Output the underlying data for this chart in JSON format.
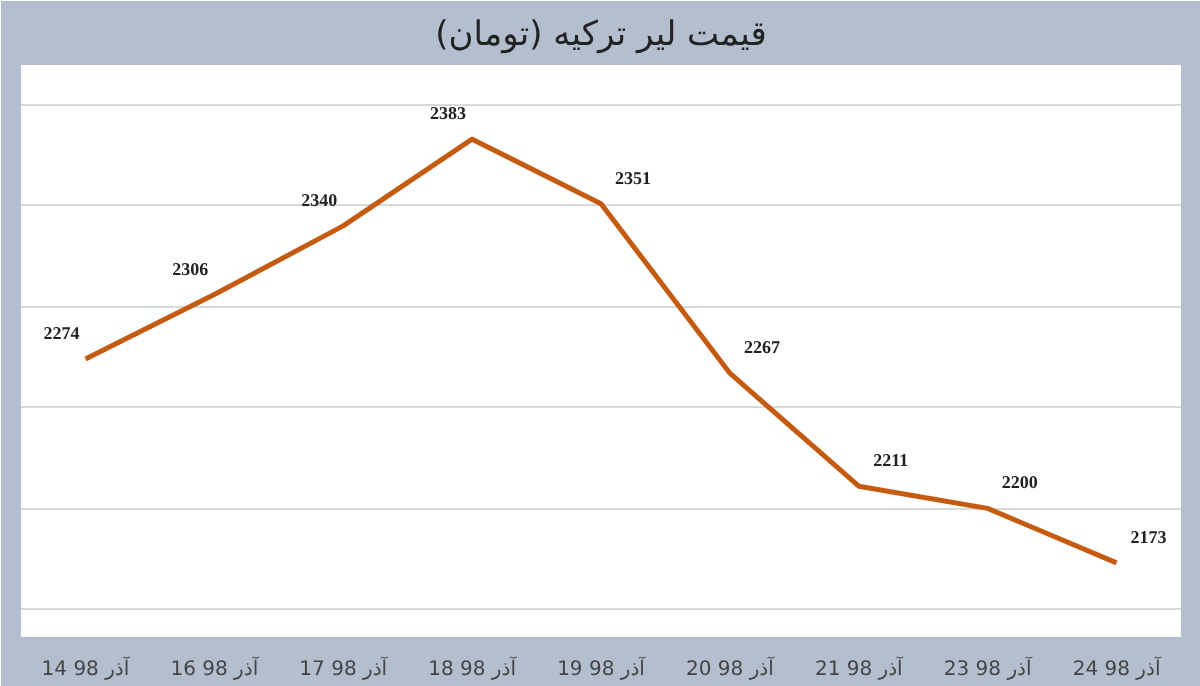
{
  "chart_data": {
    "type": "line",
    "title": "قیمت لیر ترکیه (تومان)",
    "categories": [
      "14 آذر 98",
      "16 آذر 98",
      "17 آذر 98",
      "18 آذر 98",
      "19 آذر 98",
      "20 آذر 98",
      "21 آذر 98",
      "23 آذر 98",
      "24 آذر 98"
    ],
    "series": [
      {
        "color": "#c55a11",
        "values": [
          2274,
          2306,
          2340,
          2383,
          2351,
          2267,
          2211,
          2200,
          2173
        ]
      }
    ],
    "grid": "y",
    "tick_labels": "x",
    "data_labels": true,
    "marker": "none",
    "line_style": "solid"
  }
}
